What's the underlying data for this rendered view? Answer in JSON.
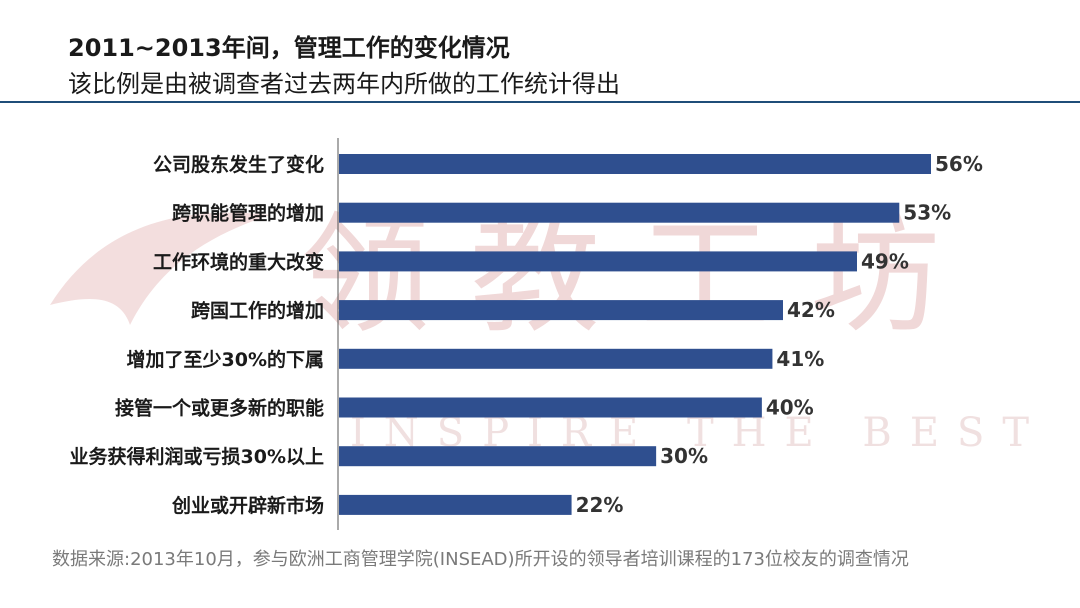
{
  "header": {
    "title": "2011~2013年间，管理工作的变化情况",
    "subtitle": "该比例是由被调查者过去两年内所做的工作统计得出"
  },
  "watermark": {
    "logo_text": "领教工坊",
    "slogan": "INSPIRE THE BEST"
  },
  "colors": {
    "bar": "#2f4f8f",
    "axis": "#555555",
    "rule": "#1f4e79"
  },
  "source_note": "数据来源:2013年10月，参与欧洲工商管理学院(INSEAD)所开设的领导者培训课程的173位校友的调查情况",
  "chart_data": {
    "type": "bar",
    "orientation": "horizontal",
    "title": "2011~2013年间，管理工作的变化情况",
    "xlabel": "",
    "ylabel": "",
    "xlim": [
      0,
      56
    ],
    "unit": "%",
    "categories": [
      "公司股东发生了变化",
      "跨职能管理的增加",
      "工作环境的重大改变",
      "跨国工作的增加",
      "增加了至少30%的下属",
      "接管一个或更多新的职能",
      "业务获得利润或亏损30%以上",
      "创业或开辟新市场"
    ],
    "values": [
      56,
      53,
      49,
      42,
      41,
      40,
      30,
      22
    ],
    "value_labels": [
      "56%",
      "53%",
      "49%",
      "42%",
      "41%",
      "40%",
      "30%",
      "22%"
    ]
  }
}
